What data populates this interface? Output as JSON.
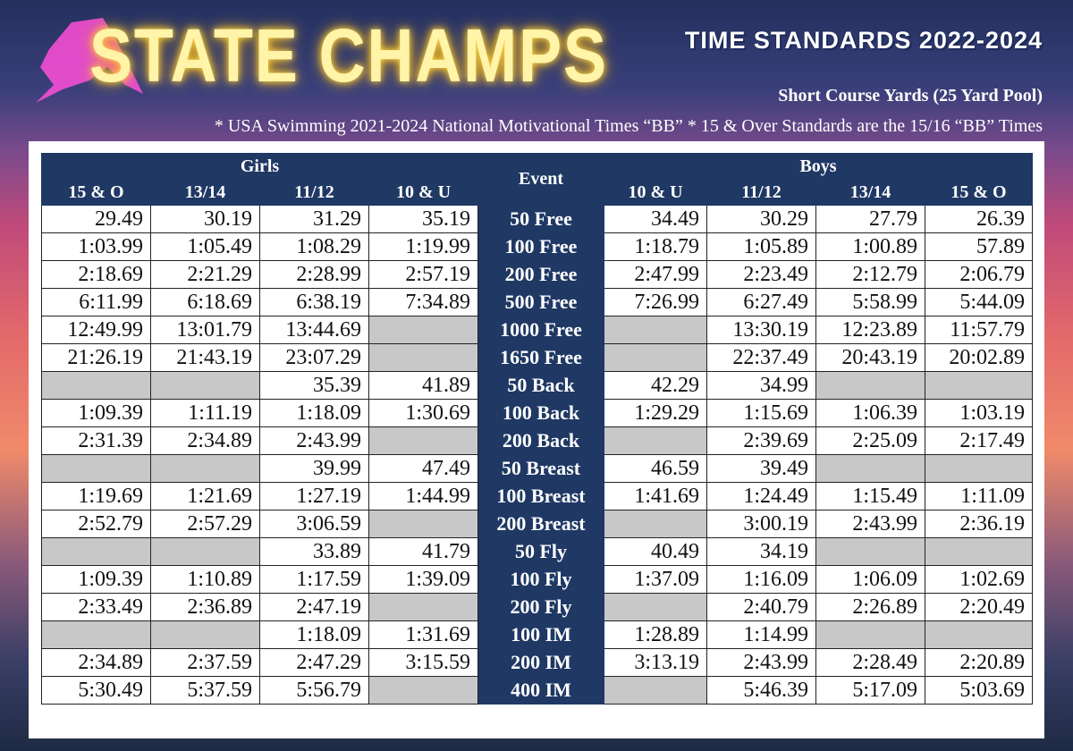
{
  "header": {
    "title": "STATE CHAMPS",
    "subtitle": "TIME STANDARDS  2022-2024",
    "course": "Short Course Yards (25 Yard Pool)",
    "note": "* USA Swimming 2021-2024 National Motivational Times “BB” * 15 & Over Standards are the 15/16 “BB” Times"
  },
  "table": {
    "groups": {
      "girls": "Girls",
      "event": "Event",
      "boys": "Boys"
    },
    "girls_columns": [
      "15 & O",
      "13/14",
      "11/12",
      "10 & U"
    ],
    "boys_columns": [
      "10 & U",
      "11/12",
      "13/14",
      "15 & O"
    ],
    "rows": [
      {
        "event": "50 Free",
        "girls": [
          "29.49",
          "30.19",
          "31.29",
          "35.19"
        ],
        "boys": [
          "34.49",
          "30.29",
          "27.79",
          "26.39"
        ]
      },
      {
        "event": "100 Free",
        "girls": [
          "1:03.99",
          "1:05.49",
          "1:08.29",
          "1:19.99"
        ],
        "boys": [
          "1:18.79",
          "1:05.89",
          "1:00.89",
          "57.89"
        ]
      },
      {
        "event": "200 Free",
        "girls": [
          "2:18.69",
          "2:21.29",
          "2:28.99",
          "2:57.19"
        ],
        "boys": [
          "2:47.99",
          "2:23.49",
          "2:12.79",
          "2:06.79"
        ]
      },
      {
        "event": "500 Free",
        "girls": [
          "6:11.99",
          "6:18.69",
          "6:38.19",
          "7:34.89"
        ],
        "boys": [
          "7:26.99",
          "6:27.49",
          "5:58.99",
          "5:44.09"
        ]
      },
      {
        "event": "1000 Free",
        "girls": [
          "12:49.99",
          "13:01.79",
          "13:44.69",
          null
        ],
        "boys": [
          null,
          "13:30.19",
          "12:23.89",
          "11:57.79"
        ]
      },
      {
        "event": "1650 Free",
        "girls": [
          "21:26.19",
          "21:43.19",
          "23:07.29",
          null
        ],
        "boys": [
          null,
          "22:37.49",
          "20:43.19",
          "20:02.89"
        ]
      },
      {
        "event": "50 Back",
        "girls": [
          null,
          null,
          "35.39",
          "41.89"
        ],
        "boys": [
          "42.29",
          "34.99",
          null,
          null
        ]
      },
      {
        "event": "100 Back",
        "girls": [
          "1:09.39",
          "1:11.19",
          "1:18.09",
          "1:30.69"
        ],
        "boys": [
          "1:29.29",
          "1:15.69",
          "1:06.39",
          "1:03.19"
        ]
      },
      {
        "event": "200 Back",
        "girls": [
          "2:31.39",
          "2:34.89",
          "2:43.99",
          null
        ],
        "boys": [
          null,
          "2:39.69",
          "2:25.09",
          "2:17.49"
        ]
      },
      {
        "event": "50 Breast",
        "girls": [
          null,
          null,
          "39.99",
          "47.49"
        ],
        "boys": [
          "46.59",
          "39.49",
          null,
          null
        ]
      },
      {
        "event": "100 Breast",
        "girls": [
          "1:19.69",
          "1:21.69",
          "1:27.19",
          "1:44.99"
        ],
        "boys": [
          "1:41.69",
          "1:24.49",
          "1:15.49",
          "1:11.09"
        ]
      },
      {
        "event": "200 Breast",
        "girls": [
          "2:52.79",
          "2:57.29",
          "3:06.59",
          null
        ],
        "boys": [
          null,
          "3:00.19",
          "2:43.99",
          "2:36.19"
        ]
      },
      {
        "event": "50 Fly",
        "girls": [
          null,
          null,
          "33.89",
          "41.79"
        ],
        "boys": [
          "40.49",
          "34.19",
          null,
          null
        ]
      },
      {
        "event": "100 Fly",
        "girls": [
          "1:09.39",
          "1:10.89",
          "1:17.59",
          "1:39.09"
        ],
        "boys": [
          "1:37.09",
          "1:16.09",
          "1:06.09",
          "1:02.69"
        ]
      },
      {
        "event": "200 Fly",
        "girls": [
          "2:33.49",
          "2:36.89",
          "2:47.19",
          null
        ],
        "boys": [
          null,
          "2:40.79",
          "2:26.89",
          "2:20.49"
        ]
      },
      {
        "event": "100 IM",
        "girls": [
          null,
          null,
          "1:18.09",
          "1:31.69"
        ],
        "boys": [
          "1:28.89",
          "1:14.99",
          null,
          null
        ]
      },
      {
        "event": "200 IM",
        "girls": [
          "2:34.89",
          "2:37.59",
          "2:47.29",
          "3:15.59"
        ],
        "boys": [
          "3:13.19",
          "2:43.99",
          "2:28.49",
          "2:20.89"
        ]
      },
      {
        "event": "400 IM",
        "girls": [
          "5:30.49",
          "5:37.59",
          "5:56.79",
          null
        ],
        "boys": [
          null,
          "5:46.39",
          "5:17.09",
          "5:03.69"
        ]
      }
    ]
  }
}
